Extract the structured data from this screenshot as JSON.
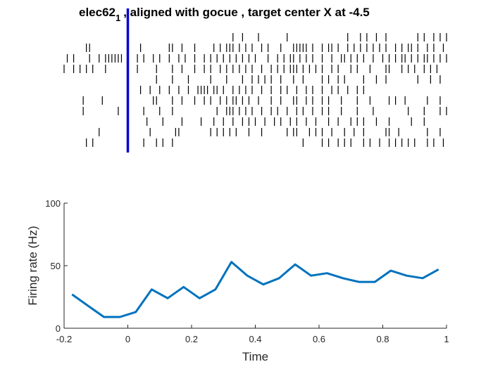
{
  "chart_data": [
    {
      "type": "raster",
      "title_main": "elec62",
      "title_subscript": "1",
      "title_rest": ", aligned with  gocue ,  target center X at -4.5",
      "event_marker": {
        "time": 0,
        "color": "#0000CC"
      },
      "time_range": [
        -0.2,
        1
      ],
      "trials": [
        [
          0.33,
          0.36,
          0.41,
          0.5,
          0.69,
          0.73,
          0.75,
          0.78,
          0.81,
          0.91,
          0.93,
          0.96,
          0.98,
          1.0
        ],
        [
          -0.13,
          -0.12,
          0.04,
          0.13,
          0.14,
          0.17,
          0.21,
          0.27,
          0.29,
          0.31,
          0.32,
          0.33,
          0.35,
          0.37,
          0.39,
          0.42,
          0.44,
          0.48,
          0.52,
          0.53,
          0.54,
          0.55,
          0.56,
          0.58,
          0.61,
          0.63,
          0.64,
          0.66,
          0.69,
          0.71,
          0.73,
          0.75,
          0.77,
          0.79,
          0.81,
          0.84,
          0.86,
          0.88,
          0.89,
          0.91,
          0.94,
          0.96,
          0.99
        ],
        [
          -0.19,
          -0.17,
          -0.12,
          -0.09,
          -0.07,
          -0.06,
          -0.05,
          -0.04,
          -0.03,
          -0.02,
          0.0,
          0.03,
          0.05,
          0.08,
          0.1,
          0.13,
          0.16,
          0.18,
          0.21,
          0.24,
          0.26,
          0.28,
          0.3,
          0.32,
          0.34,
          0.36,
          0.38,
          0.4,
          0.44,
          0.47,
          0.49,
          0.51,
          0.52,
          0.54,
          0.56,
          0.58,
          0.61,
          0.64,
          0.67,
          0.68,
          0.7,
          0.72,
          0.74,
          0.77,
          0.8,
          0.82,
          0.84,
          0.86,
          0.87,
          0.89,
          0.91,
          0.93,
          0.94,
          0.96,
          0.98,
          1.0
        ],
        [
          -0.2,
          -0.17,
          -0.15,
          -0.13,
          -0.11,
          -0.07,
          0.03,
          0.09,
          0.14,
          0.17,
          0.21,
          0.24,
          0.26,
          0.29,
          0.31,
          0.33,
          0.35,
          0.37,
          0.39,
          0.42,
          0.45,
          0.47,
          0.49,
          0.51,
          0.52,
          0.53,
          0.55,
          0.57,
          0.59,
          0.61,
          0.64,
          0.66,
          0.7,
          0.72,
          0.76,
          0.81,
          0.82,
          0.86,
          0.88,
          0.9,
          0.93,
          0.95,
          0.97
        ],
        [
          0.09,
          0.14,
          0.19,
          0.26,
          0.31,
          0.36,
          0.39,
          0.41,
          0.43,
          0.45,
          0.48,
          0.52,
          0.55,
          0.61,
          0.63,
          0.66,
          0.68,
          0.74,
          0.78,
          0.81,
          0.91,
          0.95,
          0.98
        ],
        [
          0.0,
          0.04,
          0.07,
          0.1,
          0.13,
          0.16,
          0.19,
          0.22,
          0.23,
          0.24,
          0.25,
          0.27,
          0.28,
          0.3,
          0.33,
          0.35,
          0.37,
          0.39,
          0.42,
          0.45,
          0.48,
          0.5,
          0.53,
          0.56,
          0.58,
          0.61,
          0.64,
          0.66,
          0.69,
          0.72,
          0.74
        ],
        [
          -0.14,
          -0.08,
          0.08,
          0.09,
          0.14,
          0.17,
          0.21,
          0.24,
          0.26,
          0.29,
          0.31,
          0.33,
          0.34,
          0.36,
          0.38,
          0.41,
          0.45,
          0.48,
          0.52,
          0.53,
          0.56,
          0.58,
          0.61,
          0.63,
          0.67,
          0.72,
          0.76,
          0.82,
          0.84,
          0.87,
          0.94,
          0.98
        ],
        [
          -0.14,
          -0.03,
          0.05,
          0.1,
          0.14,
          0.28,
          0.31,
          0.32,
          0.33,
          0.35,
          0.37,
          0.39,
          0.42,
          0.45,
          0.47,
          0.5,
          0.53,
          0.55,
          0.58,
          0.61,
          0.63,
          0.67,
          0.72,
          0.77,
          0.88,
          0.93,
          0.98,
          1.0
        ],
        [
          0.06,
          0.11,
          0.17,
          0.23,
          0.27,
          0.3,
          0.33,
          0.36,
          0.38,
          0.4,
          0.43,
          0.46,
          0.48,
          0.51,
          0.53,
          0.56,
          0.59,
          0.63,
          0.66,
          0.7,
          0.72,
          0.74,
          0.78,
          0.82,
          0.89,
          0.93
        ],
        [
          -0.09,
          0.07,
          0.15,
          0.16,
          0.26,
          0.28,
          0.3,
          0.32,
          0.34,
          0.38,
          0.42,
          0.5,
          0.52,
          0.53,
          0.57,
          0.59,
          0.61,
          0.64,
          0.68,
          0.71,
          0.74,
          0.81,
          0.82,
          0.85,
          0.94,
          0.98
        ],
        [
          -0.13,
          -0.11,
          0.05,
          0.09,
          0.11,
          0.14,
          0.55,
          0.61,
          0.63,
          0.66,
          0.68,
          0.7,
          0.74,
          0.76,
          0.79,
          0.82,
          0.84,
          0.86,
          0.88,
          0.9,
          0.94,
          0.96,
          0.99
        ]
      ]
    },
    {
      "type": "line",
      "x": [
        -0.175,
        -0.125,
        -0.075,
        -0.025,
        0.025,
        0.075,
        0.125,
        0.175,
        0.225,
        0.275,
        0.325,
        0.375,
        0.425,
        0.475,
        0.525,
        0.575,
        0.625,
        0.675,
        0.725,
        0.775,
        0.825,
        0.875,
        0.925,
        0.975
      ],
      "y": [
        27,
        18,
        9,
        9,
        13,
        31,
        24,
        33,
        24,
        31,
        53,
        42,
        35,
        40,
        51,
        42,
        44,
        40,
        37,
        37,
        46,
        42,
        40,
        47
      ],
      "xlabel": "Time",
      "ylabel": "Firing rate (Hz)",
      "xlim": [
        -0.2,
        1
      ],
      "ylim": [
        0,
        100
      ],
      "xticks": [
        -0.2,
        0,
        0.2,
        0.4,
        0.6,
        0.8,
        1
      ],
      "xtick_labels": [
        "-0.2",
        "0",
        "0.2",
        "0.4",
        "0.6",
        "0.8",
        "1"
      ],
      "yticks": [
        0,
        50,
        100
      ],
      "ytick_labels": [
        "0",
        "50",
        "100"
      ],
      "line_color": "#0072BD"
    }
  ]
}
